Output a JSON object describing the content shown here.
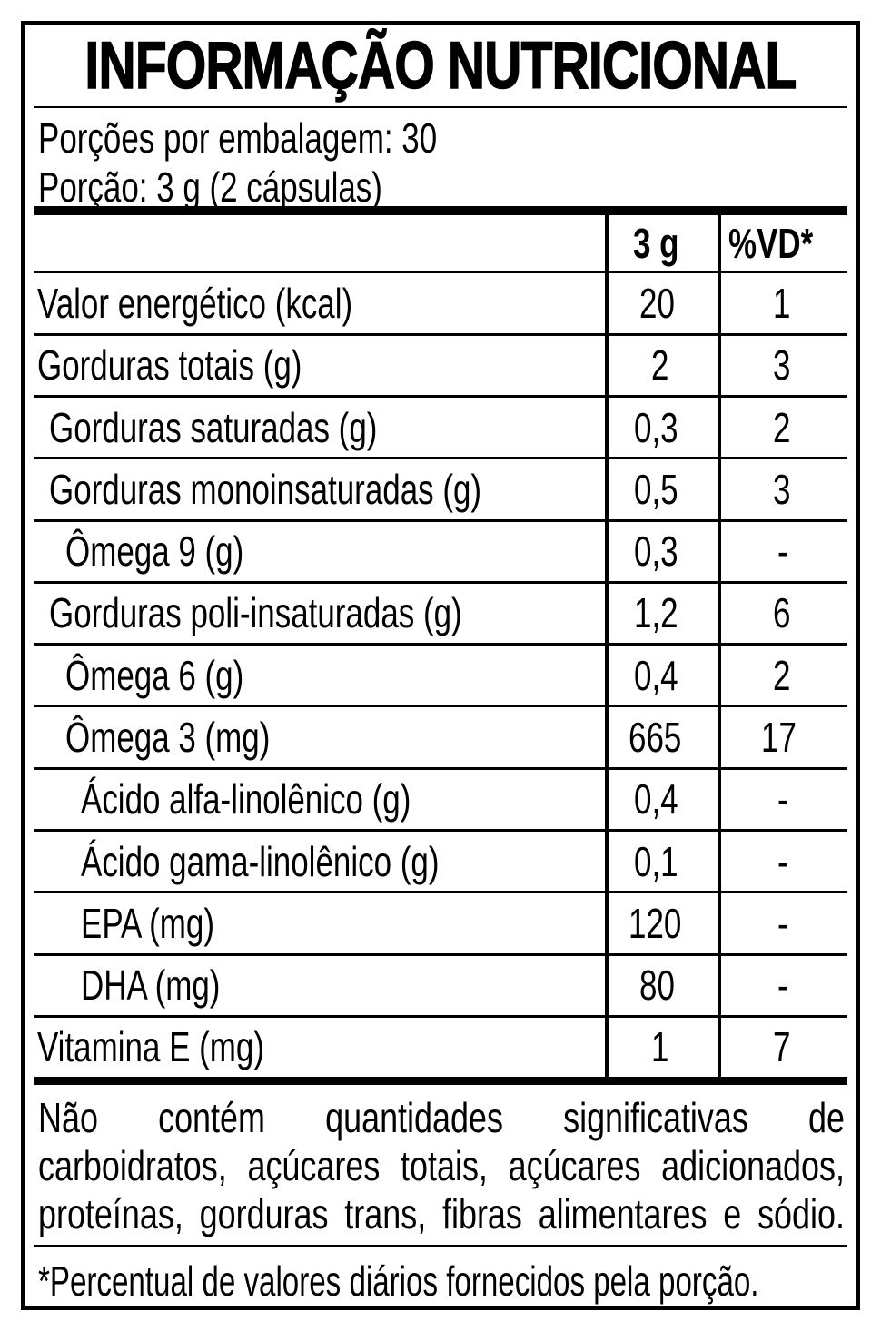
{
  "title": "INFORMAÇÃO NUTRICIONAL",
  "serving": {
    "servings_per_package": "Porções por embalagem: 30",
    "serving_size": "Porção: 3 g (2 cápsulas)"
  },
  "table": {
    "header": {
      "amount": "3 g",
      "daily_value": "%VD*"
    },
    "rows": [
      {
        "label": "Valor energético (kcal)",
        "amount": "20",
        "dv": "1",
        "indent": 0
      },
      {
        "label": "Gorduras totais (g)",
        "amount": "2",
        "dv": "3",
        "indent": 0
      },
      {
        "label": "Gorduras saturadas (g)",
        "amount": "0,3",
        "dv": "2",
        "indent": 1
      },
      {
        "label": "Gorduras monoinsaturadas (g)",
        "amount": "0,5",
        "dv": "3",
        "indent": 1
      },
      {
        "label": "Ômega 9 (g)",
        "amount": "0,3",
        "dv": "-",
        "indent": 2
      },
      {
        "label": "Gorduras poli-insaturadas (g)",
        "amount": "1,2",
        "dv": "6",
        "indent": 1
      },
      {
        "label": "Ômega 6 (g)",
        "amount": "0,4",
        "dv": "2",
        "indent": 2
      },
      {
        "label": "Ômega 3 (mg)",
        "amount": "665",
        "dv": "17",
        "indent": 2
      },
      {
        "label": "Ácido alfa-linolênico (g)",
        "amount": "0,4",
        "dv": "-",
        "indent": 3
      },
      {
        "label": "Ácido gama-linolênico (g)",
        "amount": "0,1",
        "dv": "-",
        "indent": 3
      },
      {
        "label": "EPA (mg)",
        "amount": "120",
        "dv": "-",
        "indent": 3
      },
      {
        "label": "DHA (mg)",
        "amount": "80",
        "dv": "-",
        "indent": 3
      },
      {
        "label": "Vitamina E (mg)",
        "amount": "1",
        "dv": "7",
        "indent": 0
      }
    ]
  },
  "notes": {
    "no_significant_lines": [
      "Não contém quantidades significativas de",
      "carboidratos, açúcares totais, açúcares adicionados,",
      "proteínas, gorduras trans, fibras alimentares e sódio."
    ],
    "dv_footnote": "*Percentual de valores diários fornecidos pela porção."
  },
  "colors": {
    "text": "#000000",
    "background": "#ffffff"
  }
}
